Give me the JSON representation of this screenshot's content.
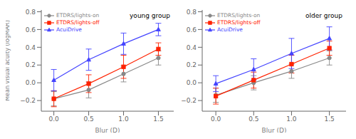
{
  "chart_data": [
    {
      "type": "line",
      "title": "young group",
      "xlabel": "Blur (D)",
      "ylabel": "Mean visual acuity (logMAR)",
      "x": [
        0.0,
        0.5,
        1.0,
        1.5
      ],
      "xlim": [
        -0.18,
        1.72
      ],
      "xticks": [
        {
          "value": 0.0,
          "label": "0.0"
        },
        0.5,
        {
          "value": 1.0,
          "label": "1.0"
        },
        1.5
      ],
      "ylim": [
        -0.32,
        0.82
      ],
      "yticks": [
        {
          "value": -0.2,
          "label": "−0.2"
        },
        {
          "value": 0.0,
          "label": "0.0"
        },
        0.2,
        0.4,
        0.6,
        0.8
      ],
      "grid": false,
      "legend": "upper left",
      "series": [
        {
          "name": "ETDRS/lights-on",
          "color": "#888888",
          "marker": "circle",
          "values": [
            -0.18,
            -0.08,
            0.1,
            0.28
          ],
          "errors": [
            0.08,
            0.09,
            0.09,
            0.08
          ]
        },
        {
          "name": "ETDRS/lights-off",
          "color": "#ff2200",
          "marker": "square",
          "values": [
            -0.18,
            -0.01,
            0.18,
            0.38
          ],
          "errors": [
            0.09,
            0.1,
            0.13,
            0.07
          ]
        },
        {
          "name": "AcuiDrive",
          "color": "#4444ff",
          "marker": "triangle",
          "values": [
            0.03,
            0.26,
            0.44,
            0.6
          ],
          "errors": [
            0.12,
            0.12,
            0.12,
            0.07
          ]
        }
      ]
    },
    {
      "type": "line",
      "title": "older group",
      "xlabel": "Blur (D)",
      "x": [
        0.0,
        0.5,
        1.0,
        1.5
      ],
      "xlim": [
        -0.18,
        1.72
      ],
      "xticks": [
        {
          "value": 0.0,
          "label": "0.0"
        },
        0.5,
        {
          "value": 1.0,
          "label": "1.0"
        },
        1.5
      ],
      "ylim": [
        -0.32,
        0.82
      ],
      "yticks": [
        {
          "value": -0.2,
          "label": "−0.2"
        },
        {
          "value": 0.0,
          "label": "0.0"
        },
        0.2,
        0.4,
        0.6,
        0.8
      ],
      "grid": false,
      "legend": "upper left",
      "series": [
        {
          "name": "ETDRS/lights-on",
          "color": "#888888",
          "marker": "circle",
          "values": [
            -0.14,
            0.0,
            0.13,
            0.28
          ],
          "errors": [
            0.08,
            0.08,
            0.08,
            0.08
          ]
        },
        {
          "name": "ETDRS/lights-off",
          "color": "#ff2200",
          "marker": "square",
          "values": [
            -0.15,
            0.03,
            0.21,
            0.39
          ],
          "errors": [
            0.09,
            0.09,
            0.1,
            0.08
          ]
        },
        {
          "name": "AcuiDrive",
          "color": "#4444ff",
          "marker": "triangle",
          "values": [
            -0.01,
            0.15,
            0.33,
            0.5
          ],
          "errors": [
            0.09,
            0.12,
            0.17,
            0.13
          ]
        }
      ]
    }
  ]
}
